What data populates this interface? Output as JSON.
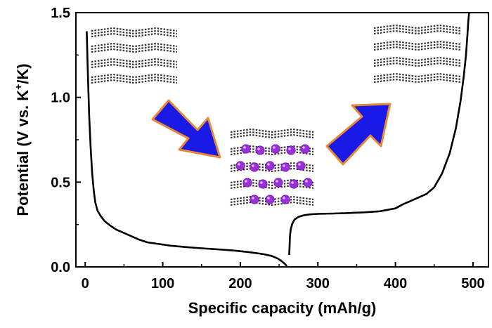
{
  "chart_data": {
    "type": "line",
    "title": "",
    "xlabel": "Specific capacity (mAh/g)",
    "ylabel": {
      "prefix": "Potential (V vs. K",
      "superscript": "+",
      "suffix": "/K)"
    },
    "xlim": [
      -12,
      520
    ],
    "ylim": [
      0,
      1.5
    ],
    "xticks": [
      0,
      100,
      200,
      300,
      400,
      500
    ],
    "yticks": [
      0.0,
      0.5,
      1.0,
      1.5
    ],
    "ytick_labels": [
      "0.0",
      "0.5",
      "1.0",
      "1.5"
    ],
    "grid": false,
    "legend": "none",
    "series": [
      {
        "name": "",
        "color": "#000000",
        "x": [
          2,
          3,
          5,
          7,
          9,
          11,
          13,
          16,
          20,
          25,
          32,
          40,
          50,
          60,
          70,
          80,
          95,
          110,
          130,
          150,
          170,
          190,
          210,
          230,
          240,
          248,
          253,
          257,
          260
        ],
        "y": [
          1.39,
          1.2,
          0.9,
          0.7,
          0.55,
          0.45,
          0.38,
          0.33,
          0.3,
          0.27,
          0.245,
          0.22,
          0.2,
          0.18,
          0.16,
          0.145,
          0.135,
          0.125,
          0.117,
          0.11,
          0.104,
          0.097,
          0.088,
          0.075,
          0.065,
          0.05,
          0.035,
          0.02,
          0.005
        ]
      },
      {
        "name": "",
        "color": "#000000",
        "x": [
          263,
          263.5,
          264,
          265,
          267,
          270,
          275,
          282,
          290,
          300,
          320,
          340,
          360,
          380,
          400,
          410,
          420,
          430,
          440,
          450,
          460,
          470,
          478,
          484,
          488,
          491,
          493,
          494,
          495
        ],
        "y": [
          0.07,
          0.12,
          0.18,
          0.22,
          0.255,
          0.28,
          0.295,
          0.305,
          0.31,
          0.313,
          0.315,
          0.318,
          0.322,
          0.328,
          0.345,
          0.37,
          0.39,
          0.41,
          0.43,
          0.47,
          0.55,
          0.67,
          0.82,
          0.98,
          1.12,
          1.25,
          1.38,
          1.45,
          1.5
        ]
      }
    ]
  },
  "inset_illustrations": {
    "layer_color": "#3a3232",
    "potassium_ion_color": "#9b30d9",
    "arrow_fill": "#1a1ae6",
    "arrow_outline": "#e8893a",
    "items": [
      {
        "name": "pristine-graphite-layers-icon"
      },
      {
        "name": "discharge-arrow-icon"
      },
      {
        "name": "potassiated-layers-icon"
      },
      {
        "name": "charge-arrow-icon"
      },
      {
        "name": "restored-graphite-layers-icon"
      }
    ]
  }
}
